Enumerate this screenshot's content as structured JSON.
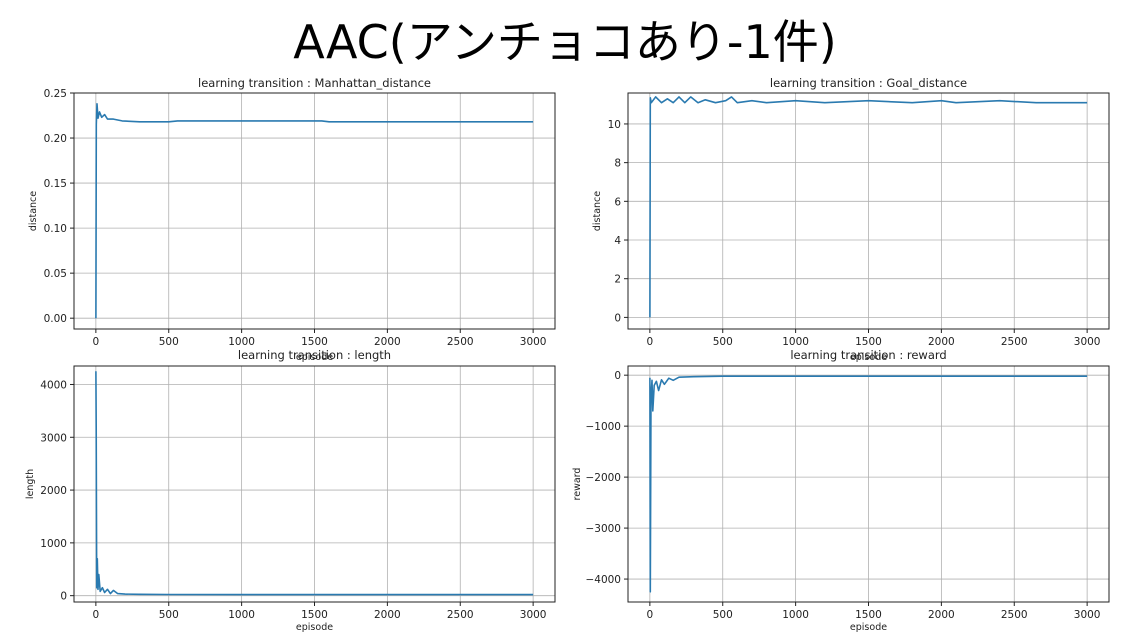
{
  "page": {
    "title": "AAC(アンチョコあり-1件)"
  },
  "chart_data": [
    {
      "type": "line",
      "title": "learning transition : Manhattan_distance",
      "xlabel": "episode",
      "ylabel": "distance",
      "xlim": [
        -150,
        3150
      ],
      "ylim": [
        -0.012,
        0.25
      ],
      "xticks": [
        "0",
        "500",
        "1000",
        "1500",
        "2000",
        "2500",
        "3000"
      ],
      "yticks": [
        "0.00",
        "0.05",
        "0.10",
        "0.15",
        "0.20",
        "0.25"
      ],
      "grid": true,
      "color": "#2a7ab0",
      "x": [
        0,
        3,
        8,
        15,
        25,
        40,
        60,
        80,
        120,
        180,
        300,
        500,
        560,
        800,
        1200,
        1550,
        1600,
        2000,
        2500,
        3000
      ],
      "y": [
        0.0,
        0.215,
        0.238,
        0.222,
        0.229,
        0.223,
        0.226,
        0.221,
        0.221,
        0.219,
        0.218,
        0.218,
        0.219,
        0.219,
        0.219,
        0.219,
        0.218,
        0.218,
        0.218,
        0.218
      ]
    },
    {
      "type": "line",
      "title": "learning transition : Goal_distance",
      "xlabel": "episode",
      "ylabel": "distance",
      "xlim": [
        -150,
        3150
      ],
      "ylim": [
        -0.6,
        11.6
      ],
      "xticks": [
        "0",
        "500",
        "1000",
        "1500",
        "2000",
        "2500",
        "3000"
      ],
      "yticks": [
        "0",
        "2",
        "4",
        "6",
        "8",
        "10"
      ],
      "grid": true,
      "color": "#2a7ab0",
      "x": [
        0,
        3,
        10,
        40,
        80,
        120,
        160,
        200,
        240,
        280,
        330,
        380,
        450,
        520,
        560,
        600,
        700,
        800,
        1000,
        1200,
        1500,
        1800,
        2000,
        2100,
        2400,
        2650,
        3000
      ],
      "y": [
        0.0,
        11.35,
        11.1,
        11.4,
        11.1,
        11.3,
        11.1,
        11.4,
        11.1,
        11.4,
        11.1,
        11.25,
        11.1,
        11.2,
        11.4,
        11.1,
        11.2,
        11.1,
        11.2,
        11.1,
        11.2,
        11.1,
        11.2,
        11.1,
        11.2,
        11.1,
        11.1
      ]
    },
    {
      "type": "line",
      "title": "learning transition : length",
      "xlabel": "episode",
      "ylabel": "length",
      "xlim": [
        -150,
        3150
      ],
      "ylim": [
        -120,
        4350
      ],
      "xticks": [
        "0",
        "500",
        "1000",
        "1500",
        "2000",
        "2500",
        "3000"
      ],
      "yticks": [
        "0",
        "1000",
        "2000",
        "3000",
        "4000"
      ],
      "grid": true,
      "color": "#2a7ab0",
      "x": [
        0,
        2,
        6,
        10,
        15,
        20,
        30,
        45,
        60,
        80,
        100,
        120,
        150,
        200,
        300,
        500,
        1000,
        2000,
        3000
      ],
      "y": [
        4250,
        3200,
        150,
        700,
        120,
        400,
        80,
        150,
        60,
        120,
        40,
        100,
        40,
        30,
        25,
        22,
        20,
        20,
        20
      ]
    },
    {
      "type": "line",
      "title": "learning transition : reward",
      "xlabel": "episode",
      "ylabel": "reward",
      "xlim": [
        -150,
        3150
      ],
      "ylim": [
        -4450,
        180
      ],
      "xticks": [
        "0",
        "500",
        "1000",
        "1500",
        "2000",
        "2500",
        "3000"
      ],
      "yticks": [
        "0",
        "−1000",
        "−2000",
        "−3000",
        "−4000"
      ],
      "grid": true,
      "color": "#2a7ab0",
      "x": [
        0,
        3,
        8,
        15,
        20,
        30,
        45,
        60,
        80,
        100,
        130,
        160,
        200,
        300,
        500,
        1000,
        2000,
        3000
      ],
      "y": [
        -50,
        -4250,
        -400,
        -100,
        -700,
        -200,
        -120,
        -300,
        -90,
        -180,
        -60,
        -100,
        -40,
        -30,
        -20,
        -20,
        -20,
        -20
      ]
    }
  ]
}
